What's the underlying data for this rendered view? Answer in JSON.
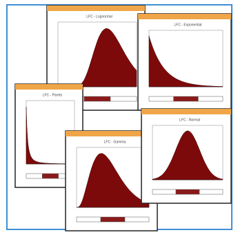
{
  "windows": [
    {
      "chart_title": "LFC - Lognormal"
    },
    {
      "chart_title": "LFC - Exponential"
    },
    {
      "chart_title": "LFC - Pareto"
    },
    {
      "chart_title": "LFC - Gamma"
    },
    {
      "chart_title": "LFC - Normal"
    }
  ]
}
